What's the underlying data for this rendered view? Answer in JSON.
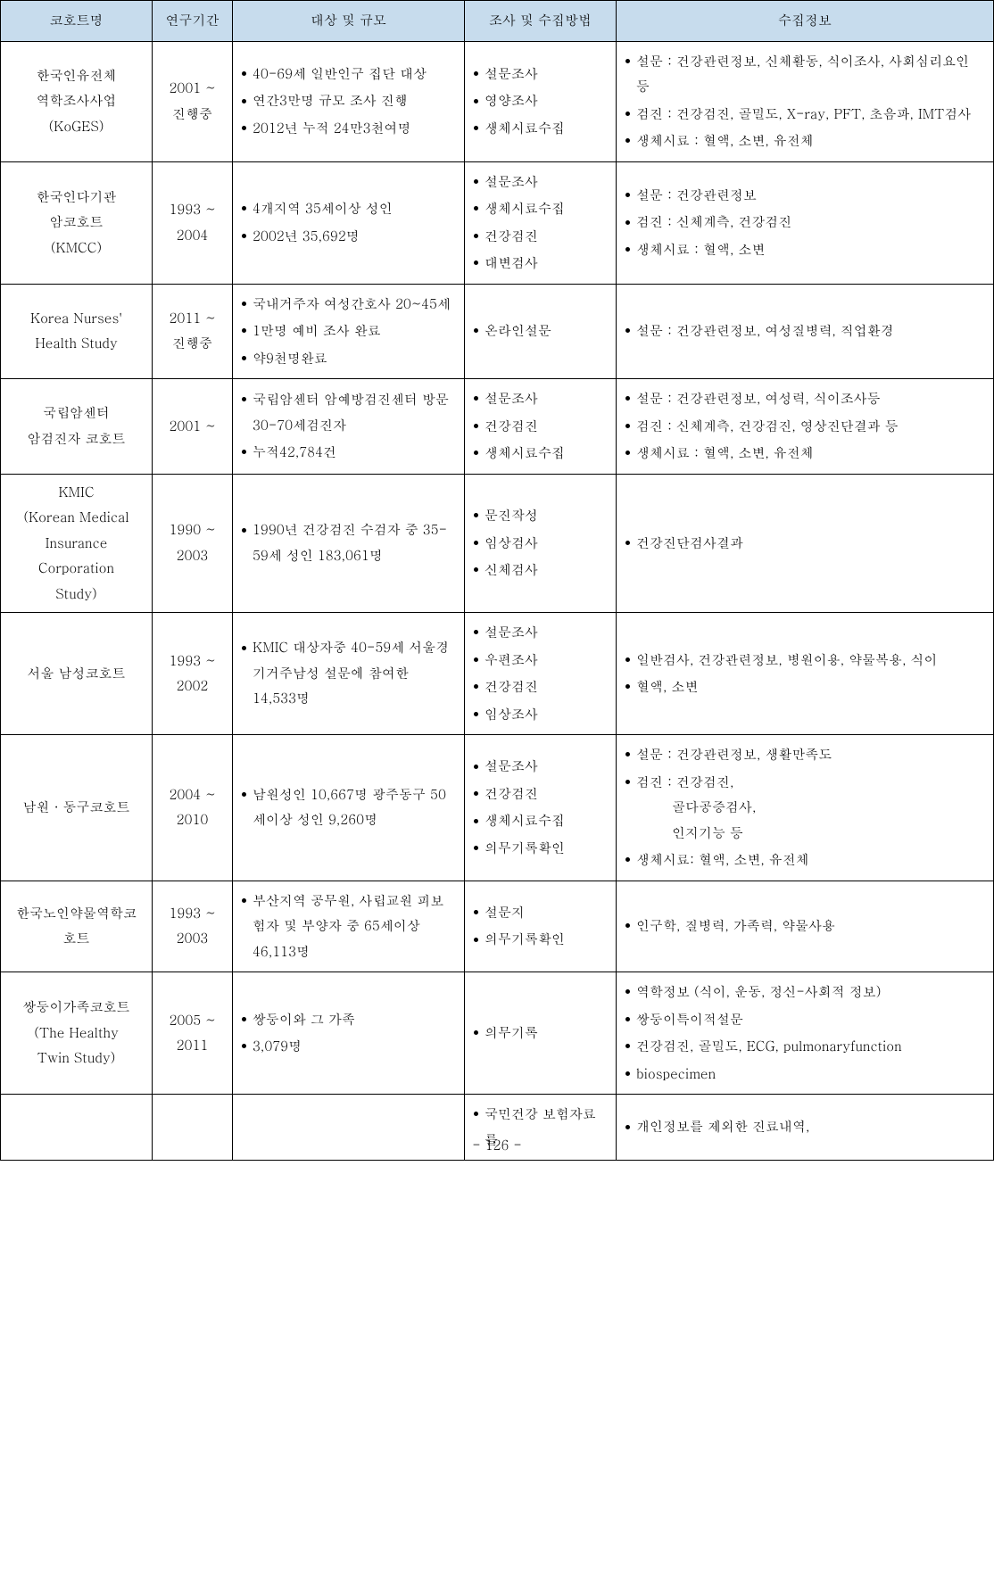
{
  "headers": {
    "c1": "코호트명",
    "c2": "연구기간",
    "c3": "대상 및 규모",
    "c4": "조사 및 수집방법",
    "c5": "수집정보"
  },
  "rows": [
    {
      "name": "한국인유전체\n역학조사사업\n(KoGES)",
      "period": "2001 ~\n진행중",
      "subjects": [
        "40-69세 일반인구 집단 대상",
        "연간3만명 규모 조사 진행",
        "2012년 누적 24만3천여명"
      ],
      "methods": [
        "설문조사",
        "영양조사",
        "생체시료수집"
      ],
      "info": [
        "설문 : 건강관련정보, 신체활동, 식이조사, 사회심리요인 등",
        "검진 : 건강검진, 골밀도, X-ray, PFT, 초음파, IMT검사",
        "생체시료 : 혈액, 소변, 유전체"
      ]
    },
    {
      "name": "한국인다기관\n암코호트\n(KMCC)",
      "period": "1993 ~\n2004",
      "subjects": [
        "4개지역 35세이상 성인",
        "2002년 35,692명"
      ],
      "methods": [
        "설문조사",
        "생체시료수집",
        "건강검진",
        "대변검사"
      ],
      "info": [
        "설문 : 건강관련정보",
        "검진 : 신체계측, 건강검진",
        "생체시료 : 혈액, 소변"
      ]
    },
    {
      "name": "Korea   Nurses'\nHealth   Study",
      "period": "2011 ~\n진행중",
      "subjects": [
        "국내거주자 여성간호사 20~45세",
        "1만명 예비 조사 완료",
        "약9천명완료"
      ],
      "methods": [
        "온라인설문"
      ],
      "info": [
        "설문 : 건강관련정보, 여성질병력, 직업환경"
      ]
    },
    {
      "name": "국립암센터\n암검진자 코호트",
      "period": "2001 ~",
      "subjects": [
        "국립암센터 암예방검진센터 방문 30-70세검진자",
        "누적42,784건"
      ],
      "methods": [
        "설문조사",
        "건강검진",
        "생체시료수집"
      ],
      "info": [
        "설문 : 건강관련정보, 여성력, 식이조사등",
        "검진 : 신체계측, 건강검진, 영상진단결과 등",
        "생체시료 : 혈액, 소변, 유전체"
      ]
    },
    {
      "name": "KMIC\n(Korean Medical\nInsurance\nCorporation\nStudy)",
      "period": "1990 ~\n2003",
      "subjects": [
        "1990년  건강검진 수검자 중  35-59세 성인 183,061명"
      ],
      "methods": [
        "문진작성",
        "임상검사",
        "신체검사"
      ],
      "info": [
        "건강진단검사결과"
      ]
    },
    {
      "name": "서울 남성코호트",
      "period": "1993 ~\n2002",
      "subjects": [
        "KMIC 대상자중 40-59세 서울경기거주남성 설문에 참여한 14,533명"
      ],
      "methods": [
        "설문조사",
        "우편조사",
        "건강검진",
        "임상조사"
      ],
      "info": [
        "일반검사, 건강관련정보, 병원이용, 약물복용, 식이",
        "혈액, 소변"
      ]
    },
    {
      "name": "남원 · 동구코호트",
      "period": "2004 ~\n2010",
      "subjects": [
        "남원성인 10,667명 광주동구 50세이상 성인 9,260명"
      ],
      "methods": [
        "설문조사",
        "건강검진",
        "생체시료수집",
        "의무기록확인"
      ],
      "info": [
        "설문 : 건강관련정보, 생활만족도",
        "검진 : 건강검진,\n        골다공증검사,\n        인지기능 등",
        "생체시료: 혈액, 소변, 유전체"
      ]
    },
    {
      "name": "한국노인약물역학코\n호트",
      "period": "1993 ~\n2003",
      "subjects": [
        "부산지역 공무원, 사립교원 피보험자 및 부양자 중 65세이상 46,113명"
      ],
      "methods": [
        "설문지",
        "의무기록확인"
      ],
      "info": [
        "인구학, 질병력, 가족력, 약물사용"
      ]
    },
    {
      "name": "쌍둥이가족코호트\n(The Healthy\nTwin Study)",
      "period": "2005 ~\n2011",
      "subjects": [
        "쌍둥이와 그 가족",
        "3,079명"
      ],
      "methods": [
        "의무기록"
      ],
      "info": [
        "역학정보 (식이, 운동, 정신-사회적 정보)",
        "쌍둥이특이적설문",
        "건강검진, 골밀도, ECG, pulmonaryfunction",
        "biospecimen"
      ]
    },
    {
      "name": "",
      "period": "",
      "subjects": [],
      "methods": [
        "국민건강 보험자료를"
      ],
      "info": [
        "개인정보를 제외한 진료내역,"
      ]
    }
  ],
  "pagenum": "- 126 -"
}
